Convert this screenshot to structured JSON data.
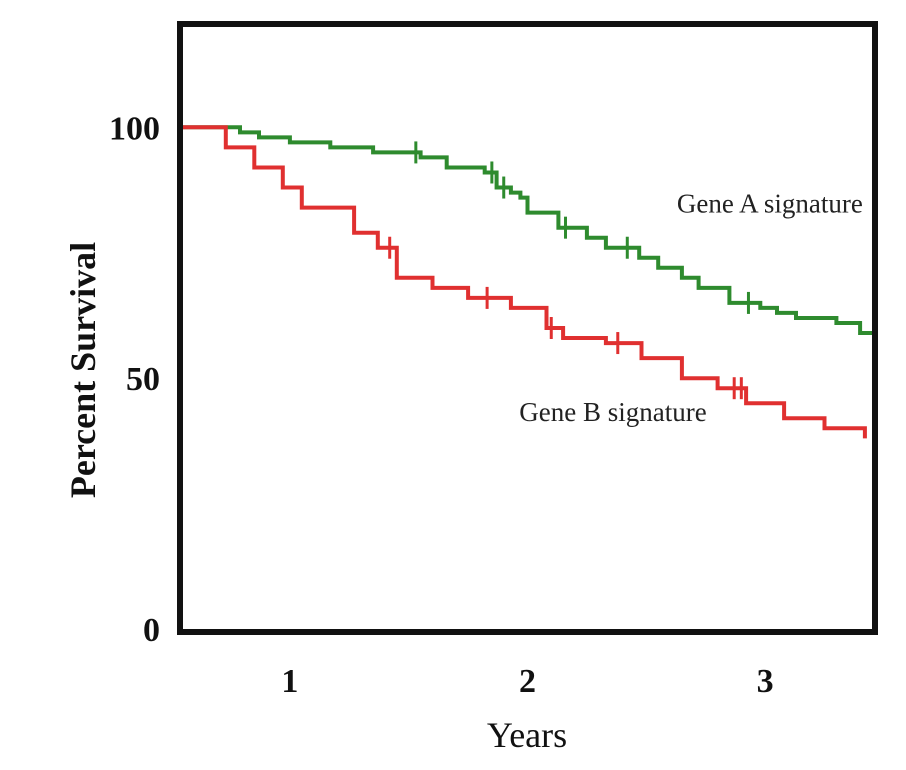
{
  "chart_data": {
    "type": "line",
    "title": "",
    "xlabel": "Years",
    "ylabel": "Percent Survival",
    "xlim": [
      0.55,
      3.45
    ],
    "ylim": [
      0,
      120
    ],
    "x_ticks": [
      1,
      2,
      3
    ],
    "x_tick_labels": [
      "1",
      "2",
      "3"
    ],
    "y_ticks": [
      0,
      50,
      100
    ],
    "y_tick_labels": [
      "0",
      "50",
      "100"
    ],
    "grid": false,
    "legend": "none",
    "series": [
      {
        "name": "Gene A signature",
        "color": "#2e8b2e",
        "step": true,
        "points": [
          [
            0.55,
            100
          ],
          [
            0.75,
            100
          ],
          [
            0.79,
            99
          ],
          [
            0.87,
            98
          ],
          [
            1.0,
            97
          ],
          [
            1.17,
            96
          ],
          [
            1.35,
            95
          ],
          [
            1.55,
            94
          ],
          [
            1.66,
            92
          ],
          [
            1.82,
            91
          ],
          [
            1.87,
            88
          ],
          [
            1.93,
            87
          ],
          [
            1.97,
            86
          ],
          [
            2.0,
            83
          ],
          [
            2.13,
            80
          ],
          [
            2.25,
            78
          ],
          [
            2.33,
            76
          ],
          [
            2.47,
            74
          ],
          [
            2.55,
            72
          ],
          [
            2.65,
            70
          ],
          [
            2.72,
            68
          ],
          [
            2.85,
            65
          ],
          [
            2.98,
            64
          ],
          [
            3.05,
            63
          ],
          [
            3.13,
            62
          ],
          [
            3.3,
            61
          ],
          [
            3.4,
            59
          ],
          [
            3.45,
            59
          ]
        ],
        "censor_x": [
          1.53,
          1.85,
          1.9,
          2.16,
          2.42,
          2.93
        ]
      },
      {
        "name": "Gene B signature",
        "color": "#e03030",
        "step": true,
        "points": [
          [
            0.55,
            100
          ],
          [
            0.73,
            100
          ],
          [
            0.73,
            96
          ],
          [
            0.85,
            96
          ],
          [
            0.85,
            92
          ],
          [
            0.97,
            92
          ],
          [
            0.97,
            88
          ],
          [
            1.05,
            88
          ],
          [
            1.05,
            84
          ],
          [
            1.27,
            84
          ],
          [
            1.27,
            79
          ],
          [
            1.37,
            79
          ],
          [
            1.37,
            76
          ],
          [
            1.45,
            76
          ],
          [
            1.45,
            70
          ],
          [
            1.6,
            70
          ],
          [
            1.6,
            68
          ],
          [
            1.75,
            68
          ],
          [
            1.75,
            66
          ],
          [
            1.93,
            66
          ],
          [
            1.93,
            64
          ],
          [
            2.08,
            64
          ],
          [
            2.08,
            60
          ],
          [
            2.15,
            60
          ],
          [
            2.15,
            58
          ],
          [
            2.33,
            58
          ],
          [
            2.33,
            57
          ],
          [
            2.48,
            57
          ],
          [
            2.48,
            54
          ],
          [
            2.65,
            54
          ],
          [
            2.65,
            50
          ],
          [
            2.8,
            50
          ],
          [
            2.8,
            48
          ],
          [
            2.92,
            48
          ],
          [
            2.92,
            45
          ],
          [
            3.08,
            45
          ],
          [
            3.08,
            42
          ],
          [
            3.25,
            42
          ],
          [
            3.25,
            40
          ],
          [
            3.42,
            40
          ],
          [
            3.42,
            38
          ]
        ],
        "censor_x": [
          1.42,
          1.83,
          2.1,
          2.38,
          2.87,
          2.9
        ]
      }
    ],
    "annotations": [
      {
        "text": "Gene A signature",
        "x": 3.02,
        "y": 83
      },
      {
        "text": "Gene B signature",
        "x": 2.36,
        "y": 41.5
      }
    ]
  }
}
